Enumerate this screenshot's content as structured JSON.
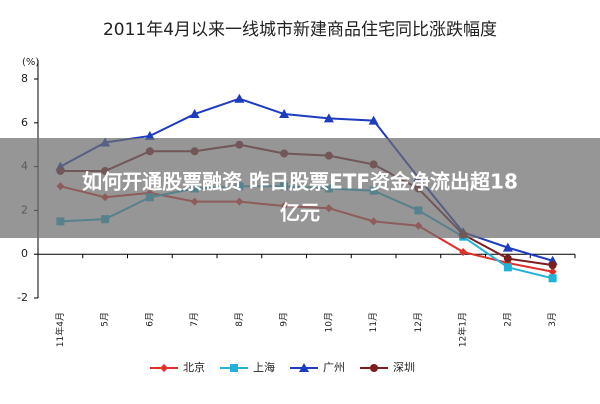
{
  "chart_data": {
    "type": "line",
    "title": "2011年4月以来一线城市新建商品住宅同比涨跌幅度",
    "y_unit": "(%)",
    "caption": [
      "如何开通股票融资 昨日股票ETF资金净流出超18",
      "亿元"
    ],
    "categories": [
      "11年4月",
      "5月",
      "6月",
      "7月",
      "8月",
      "9月",
      "10月",
      "11月",
      "12月",
      "12年1月",
      "2月",
      "3月"
    ],
    "series": [
      {
        "name": "北京",
        "color": "#e0302a",
        "marker": "diamond",
        "values": [
          3.1,
          2.6,
          2.8,
          2.4,
          2.4,
          2.2,
          2.1,
          1.5,
          1.3,
          0.1,
          -0.4,
          -0.8
        ]
      },
      {
        "name": "上海",
        "color": "#1fb3d9",
        "marker": "square",
        "values": [
          1.5,
          1.6,
          2.6,
          3.0,
          3.1,
          3.1,
          3.0,
          2.9,
          2.0,
          0.8,
          -0.6,
          -1.1
        ]
      },
      {
        "name": "广州",
        "color": "#1e3cbf",
        "marker": "triangle",
        "values": [
          4.0,
          5.1,
          5.4,
          6.4,
          7.1,
          6.4,
          6.2,
          6.1,
          3.5,
          1.0,
          0.3,
          -0.3
        ]
      },
      {
        "name": "深圳",
        "color": "#7a1e1e",
        "marker": "circle",
        "values": [
          3.8,
          3.8,
          4.7,
          4.7,
          5.0,
          4.6,
          4.5,
          4.1,
          3.0,
          0.9,
          -0.2,
          -0.5
        ]
      }
    ],
    "ylim": [
      -2,
      8
    ],
    "yticks": [
      -2,
      0,
      2,
      4,
      6,
      8
    ],
    "legend": "bottom"
  }
}
